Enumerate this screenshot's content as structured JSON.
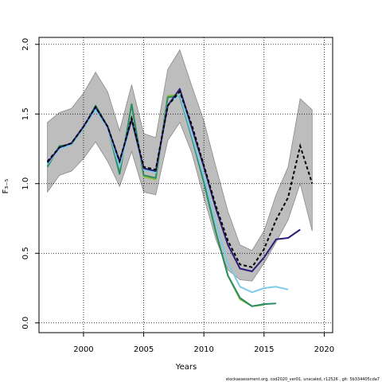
{
  "chart_data": {
    "type": "line",
    "xlabel": "Years",
    "ylabel": "F₃₋₅",
    "xlim": [
      1996.3,
      2020.7
    ],
    "ylim": [
      -0.07,
      2.05
    ],
    "x_ticks": [
      2000,
      2005,
      2010,
      2015,
      2020
    ],
    "y_ticks": [
      0.0,
      0.5,
      1.0,
      1.5,
      2.0
    ],
    "y_tick_labels": [
      "0.0",
      "0.5",
      "1.0",
      "1.5",
      "2.0"
    ],
    "grid": true,
    "band": {
      "x": [
        1997,
        1998,
        1999,
        2000,
        2001,
        2002,
        2003,
        2004,
        2005,
        2006,
        2007,
        2008,
        2009,
        2010,
        2011,
        2012,
        2013,
        2014,
        2015,
        2016,
        2017,
        2018,
        2019
      ],
      "upper": [
        1.44,
        1.51,
        1.54,
        1.65,
        1.8,
        1.66,
        1.38,
        1.71,
        1.36,
        1.33,
        1.82,
        1.96,
        1.7,
        1.45,
        1.12,
        0.8,
        0.56,
        0.52,
        0.66,
        0.92,
        1.12,
        1.61,
        1.53
      ],
      "lower": [
        0.94,
        1.06,
        1.09,
        1.18,
        1.3,
        1.16,
        0.98,
        1.23,
        0.94,
        0.92,
        1.31,
        1.44,
        1.22,
        0.9,
        0.6,
        0.38,
        0.31,
        0.3,
        0.43,
        0.58,
        0.74,
        1.0,
        0.66
      ]
    },
    "series": [
      {
        "color": "#000000",
        "dashed": true,
        "x": [
          1997,
          1998,
          1999,
          2000,
          2001,
          2002,
          2003,
          2004,
          2005,
          2006,
          2007,
          2008,
          2009,
          2010,
          2011,
          2012,
          2013,
          2014,
          2015,
          2016,
          2017,
          2018,
          2019
        ],
        "y": [
          1.16,
          1.26,
          1.29,
          1.41,
          1.55,
          1.41,
          1.16,
          1.47,
          1.12,
          1.1,
          1.56,
          1.66,
          1.42,
          1.13,
          0.84,
          0.59,
          0.42,
          0.4,
          0.53,
          0.74,
          0.9,
          1.27,
          1.0
        ]
      },
      {
        "color": "#2b1e78",
        "x": [
          1997,
          1998,
          1999,
          2000,
          2001,
          2002,
          2003,
          2004,
          2005,
          2006,
          2007,
          2008,
          2009,
          2010,
          2011,
          2012,
          2013,
          2014,
          2015,
          2016,
          2017,
          2018
        ],
        "y": [
          1.15,
          1.26,
          1.29,
          1.41,
          1.55,
          1.41,
          1.16,
          1.46,
          1.11,
          1.09,
          1.56,
          1.68,
          1.4,
          1.12,
          0.82,
          0.56,
          0.39,
          0.37,
          0.47,
          0.6,
          0.61,
          0.67
        ]
      },
      {
        "color": "#7ecbe8",
        "x": [
          1997,
          1998,
          1999,
          2000,
          2001,
          2002,
          2003,
          2004,
          2005,
          2006,
          2007,
          2008,
          2009,
          2010,
          2011,
          2012,
          2013,
          2014,
          2015,
          2016,
          2017
        ],
        "y": [
          1.14,
          1.25,
          1.28,
          1.4,
          1.53,
          1.4,
          1.12,
          1.46,
          1.1,
          1.08,
          1.57,
          1.64,
          1.35,
          1.05,
          0.72,
          0.43,
          0.26,
          0.22,
          0.25,
          0.26,
          0.24
        ]
      },
      {
        "color": "#2a8c63",
        "x": [
          1997,
          1998,
          1999,
          2000,
          2001,
          2002,
          2003,
          2004,
          2005,
          2006,
          2007,
          2008,
          2009,
          2010,
          2011,
          2012,
          2013,
          2014,
          2015,
          2016
        ],
        "y": [
          1.12,
          1.27,
          1.28,
          1.4,
          1.56,
          1.41,
          1.07,
          1.57,
          1.06,
          1.04,
          1.62,
          1.63,
          1.33,
          1.01,
          0.65,
          0.34,
          0.18,
          0.12,
          0.135,
          0.14
        ]
      },
      {
        "color": "#8bbf3a",
        "x": [
          1997,
          1998,
          1999,
          2000,
          2001,
          2002,
          2003,
          2004,
          2005,
          2006,
          2007,
          2008,
          2009,
          2010,
          2011,
          2012,
          2013,
          2014,
          2015
        ],
        "y": [
          1.12,
          1.27,
          1.28,
          1.4,
          1.56,
          1.41,
          1.07,
          1.57,
          1.05,
          1.03,
          1.63,
          1.64,
          1.33,
          1.01,
          0.65,
          0.34,
          0.17,
          0.12,
          0.13
        ]
      }
    ]
  },
  "footer_text": "stockassessment.org, cod2020_ver01, unscaled, r12526 , git: 5b334405cda7"
}
